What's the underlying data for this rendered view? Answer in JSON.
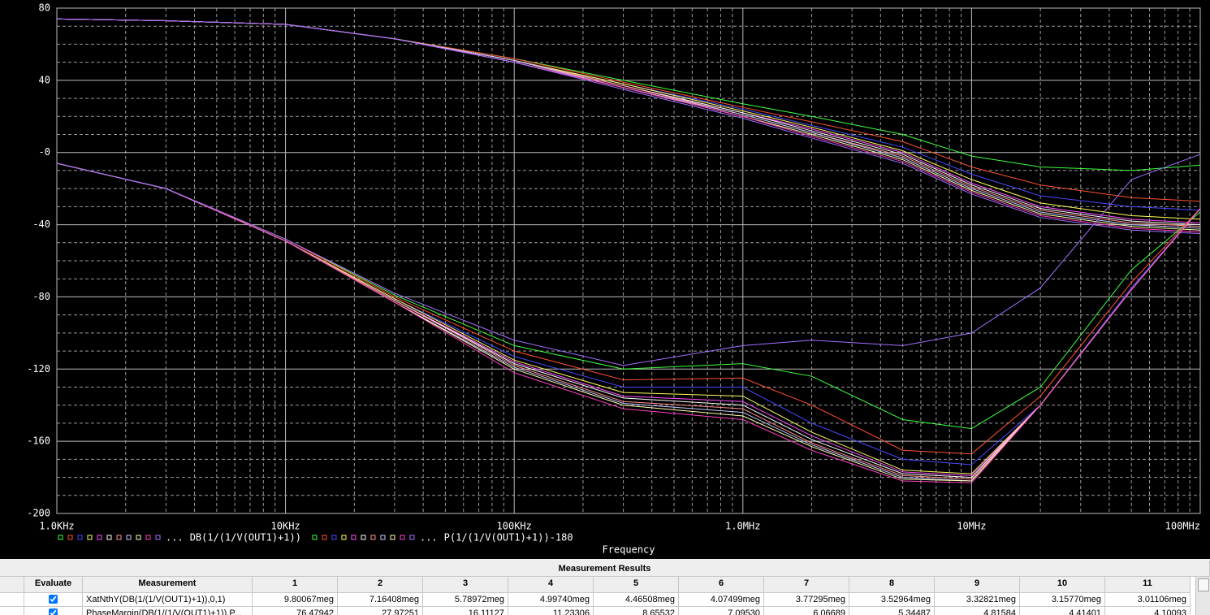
{
  "chart_data": {
    "type": "line",
    "xlabel": "Frequency",
    "log_x": true,
    "grid": true,
    "minor_grid": true,
    "xlim": [
      1000,
      100000000
    ],
    "xticks": [
      {
        "value": 1000,
        "label": "1.0KHz"
      },
      {
        "value": 10000,
        "label": "10KHz"
      },
      {
        "value": 100000,
        "label": "100KHz"
      },
      {
        "value": 1000000,
        "label": "1.0MHz"
      },
      {
        "value": 10000000,
        "label": "10MHz"
      },
      {
        "value": 100000000,
        "label": "100MHz"
      }
    ],
    "ylim": [
      -200,
      80
    ],
    "yticks": [
      80,
      40,
      {
        "value": 0,
        "label": "-0"
      },
      -40,
      -80,
      -120,
      -160,
      -200
    ],
    "legend_ellipsis": "...",
    "x": [
      1000,
      3000,
      10000,
      30000,
      100000,
      300000,
      1000000,
      2000000,
      5000000,
      10000000,
      20000000,
      50000000,
      100000000
    ],
    "series_groups": [
      {
        "name": "DB(1/(1/V(OUT1)+1))",
        "series": [
          {
            "color": "#40ff40",
            "values": [
              74,
              73,
              71,
              63,
              52,
              40,
              27,
              20,
              10,
              -2,
              -8,
              -10,
              -7
            ]
          },
          {
            "color": "#ff5030",
            "values": [
              74,
              73,
              71,
              63,
              52,
              39,
              25,
              17,
              6,
              -8,
              -18,
              -25,
              -27
            ]
          },
          {
            "color": "#4848ff",
            "values": [
              74,
              73,
              71,
              63,
              51,
              38,
              24,
              15,
              3,
              -12,
              -24,
              -30,
              -32
            ]
          },
          {
            "color": "#ffff60",
            "values": [
              74,
              73,
              71,
              63,
              51,
              38,
              23,
              14,
              1,
              -15,
              -28,
              -35,
              -37
            ]
          },
          {
            "color": "#ff50ff",
            "values": [
              74,
              73,
              71,
              63,
              51,
              37,
              22,
              13,
              0,
              -17,
              -30,
              -37,
              -39
            ]
          },
          {
            "color": "#ffffff",
            "values": [
              74,
              73,
              71,
              63,
              51,
              37,
              22,
              12,
              -1,
              -18,
              -31,
              -38,
              -40
            ]
          },
          {
            "color": "#ff9090",
            "values": [
              74,
              73,
              71,
              63,
              51,
              37,
              21,
              11,
              -2,
              -19,
              -32,
              -39,
              -41
            ]
          },
          {
            "color": "#c8c8ff",
            "values": [
              74,
              73,
              71,
              63,
              51,
              36,
              21,
              11,
              -3,
              -20,
              -33,
              -40,
              -42
            ]
          },
          {
            "color": "#ffffb0",
            "values": [
              74,
              73,
              71,
              63,
              50,
              36,
              20,
              10,
              -4,
              -21,
              -34,
              -41,
              -43
            ]
          },
          {
            "color": "#ff40c0",
            "values": [
              74,
              73,
              71,
              63,
              50,
              36,
              20,
              9,
              -5,
              -22,
              -35,
              -42,
              -44
            ]
          },
          {
            "color": "#a070ff",
            "values": [
              74,
              73,
              71,
              63,
              50,
              35,
              19,
              8,
              -6,
              -23,
              -36,
              -43,
              -45
            ]
          }
        ]
      },
      {
        "name": "P(1/(1/V(OUT1)+1))-180",
        "series": [
          {
            "color": "#40ff40",
            "values": [
              -6,
              -20,
              -48,
              -79,
              -107,
              -120,
              -117,
              -124,
              -148,
              -153,
              -130,
              -65,
              -33
            ]
          },
          {
            "color": "#ff5030",
            "values": [
              -6,
              -20,
              -48,
              -80,
              -110,
              -126,
              -125,
              -140,
              -165,
              -167,
              -135,
              -72,
              -31
            ]
          },
          {
            "color": "#4848ff",
            "values": [
              -6,
              -20,
              -49,
              -81,
              -113,
              -130,
              -130,
              -150,
              -170,
              -173,
              -140,
              -75,
              -31
            ]
          },
          {
            "color": "#ffff60",
            "values": [
              -6,
              -20,
              -49,
              -81,
              -115,
              -133,
              -135,
              -155,
              -176,
              -178,
              -140,
              -76,
              -31
            ]
          },
          {
            "color": "#ff50ff",
            "values": [
              -6,
              -20,
              -49,
              -82,
              -116,
              -135,
              -138,
              -157,
              -177,
              -179,
              -140,
              -76,
              -31
            ]
          },
          {
            "color": "#ffffff",
            "values": [
              -6,
              -20,
              -49,
              -82,
              -117,
              -136,
              -140,
              -159,
              -178,
              -180,
              -140,
              -76,
              -31
            ]
          },
          {
            "color": "#ff9090",
            "values": [
              -6,
              -20,
              -49,
              -82,
              -118,
              -138,
              -142,
              -161,
              -179,
              -181,
              -140,
              -76,
              -31
            ]
          },
          {
            "color": "#c8c8ff",
            "values": [
              -6,
              -20,
              -49,
              -83,
              -119,
              -139,
              -144,
              -162,
              -180,
              -182,
              -140,
              -76,
              -31
            ]
          },
          {
            "color": "#ffffb0",
            "values": [
              -6,
              -20,
              -49,
              -83,
              -120,
              -140,
              -146,
              -163,
              -181,
              -182,
              -140,
              -76,
              -31
            ]
          },
          {
            "color": "#ff40c0",
            "values": [
              -6,
              -20,
              -49,
              -83,
              -122,
              -142,
              -148,
              -165,
              -182,
              -183,
              -140,
              -76,
              -31
            ]
          },
          {
            "color": "#a070ff",
            "values": [
              -6,
              -20,
              -48,
              -78,
              -104,
              -118,
              -107,
              -104,
              -107,
              -100,
              -75,
              -15,
              -1
            ]
          }
        ]
      }
    ]
  },
  "table": {
    "title": "Measurement Results",
    "columns": [
      "Evaluate",
      "Measurement",
      "1",
      "2",
      "3",
      "4",
      "5",
      "6",
      "7",
      "8",
      "9",
      "10",
      "11"
    ],
    "rows": [
      {
        "evaluate": true,
        "measurement": "XatNthY(DB(1/(1/V(OUT1)+1)),0,1)",
        "values": [
          "9.80067meg",
          "7.16408meg",
          "5.78972meg",
          "4.99740meg",
          "4.46508meg",
          "4.07499meg",
          "3.77295meg",
          "3.52964meg",
          "3.32821meg",
          "3.15770meg",
          "3.01106meg"
        ]
      },
      {
        "evaluate": true,
        "measurement": "PhaseMargin(DB(1/(1/V(OUT1)+1)),P...",
        "values": [
          "76.47942",
          "27.97251",
          "16.11127",
          "11.23306",
          "8.65532",
          "7.09530",
          "6.06689",
          "5.34487",
          "4.81584",
          "4.41401",
          "4.10093"
        ]
      }
    ]
  }
}
